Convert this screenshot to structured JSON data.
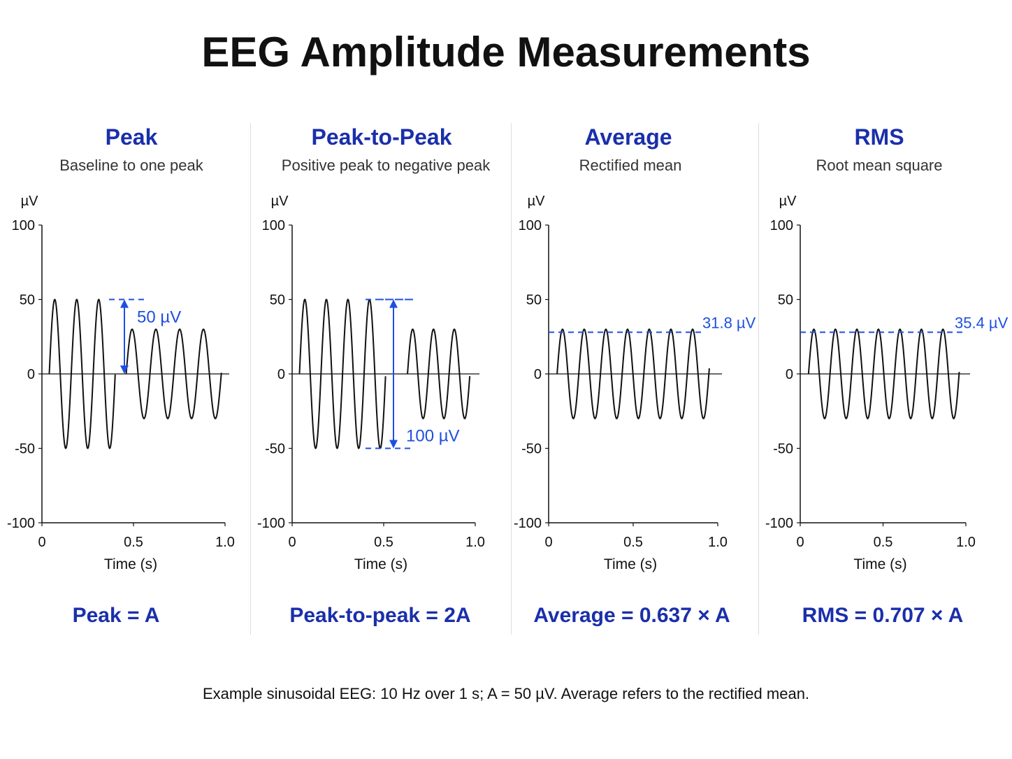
{
  "title": "EEG Amplitude Measurements",
  "footnote": "Example sinusoidal EEG: 10 Hz over 1 s; A = 50 µV. Average refers to the rectified mean.",
  "colors": {
    "accent": "#1a2faa",
    "annotation": "#1f4fe0",
    "trace": "#111111"
  },
  "panels": [
    {
      "title": "Peak",
      "subtitle": "Baseline to one peak",
      "formula": "Peak = A"
    },
    {
      "title": "Peak-to-Peak",
      "subtitle": "Positive peak to negative peak",
      "formula": "Peak-to-peak = 2A"
    },
    {
      "title": "Average",
      "subtitle": "Rectified mean",
      "formula": "Average = 0.637 × A"
    },
    {
      "title": "RMS",
      "subtitle": "Root mean square",
      "formula": "RMS = 0.707 × A"
    }
  ],
  "chart_data": [
    {
      "type": "line",
      "title": "Peak",
      "ylabel": "µV",
      "xlabel": "Time (s)",
      "xlim": [
        0,
        1.0
      ],
      "ylim": [
        -100,
        100
      ],
      "xticks": [
        "0",
        "0.5",
        "1.0"
      ],
      "yticks": [
        "100",
        "50",
        "0",
        "-50",
        "-100"
      ],
      "segments": [
        {
          "t_start": 0.04,
          "t_end": 0.4,
          "amplitude": 50,
          "frequency_hz": 8.33
        },
        {
          "t_start": 0.46,
          "t_end": 0.98,
          "amplitude": 30,
          "frequency_hz": 7.7
        }
      ],
      "annotation": {
        "kind": "arrow",
        "from": 0,
        "to": 50,
        "label": "50 µV"
      }
    },
    {
      "type": "line",
      "title": "Peak-to-Peak",
      "ylabel": "µV",
      "xlabel": "Time (s)",
      "xlim": [
        0,
        1.0
      ],
      "ylim": [
        -100,
        100
      ],
      "xticks": [
        "0",
        "0.5",
        "1.0"
      ],
      "yticks": [
        "100",
        "50",
        "0",
        "-50",
        "-100"
      ],
      "segments": [
        {
          "t_start": 0.04,
          "t_end": 0.51,
          "amplitude": 50,
          "frequency_hz": 8.5
        },
        {
          "t_start": 0.63,
          "t_end": 0.97,
          "amplitude": 30,
          "frequency_hz": 8.8
        }
      ],
      "annotation": {
        "kind": "arrow",
        "from": -50,
        "to": 50,
        "label": "100 µV"
      }
    },
    {
      "type": "line",
      "title": "Average",
      "ylabel": "µV",
      "xlabel": "Time (s)",
      "xlim": [
        0,
        1.0
      ],
      "ylim": [
        -100,
        100
      ],
      "xticks": [
        "0",
        "0.5",
        "1.0"
      ],
      "yticks": [
        "100",
        "50",
        "0",
        "-50",
        "-100"
      ],
      "segments": [
        {
          "t_start": 0.05,
          "t_end": 0.95,
          "amplitude": 30,
          "frequency_hz": 7.8
        }
      ],
      "annotation": {
        "kind": "level",
        "value": 31.8,
        "label": "31.8 µV"
      }
    },
    {
      "type": "line",
      "title": "RMS",
      "ylabel": "µV",
      "xlabel": "Time (s)",
      "xlim": [
        0,
        1.0
      ],
      "ylim": [
        -100,
        100
      ],
      "xticks": [
        "0",
        "0.5",
        "1.0"
      ],
      "yticks": [
        "100",
        "50",
        "0",
        "-50",
        "-100"
      ],
      "segments": [
        {
          "t_start": 0.05,
          "t_end": 0.96,
          "amplitude": 30,
          "frequency_hz": 7.7
        }
      ],
      "annotation": {
        "kind": "level",
        "value": 35.4,
        "label": "35.4 µV"
      }
    }
  ]
}
